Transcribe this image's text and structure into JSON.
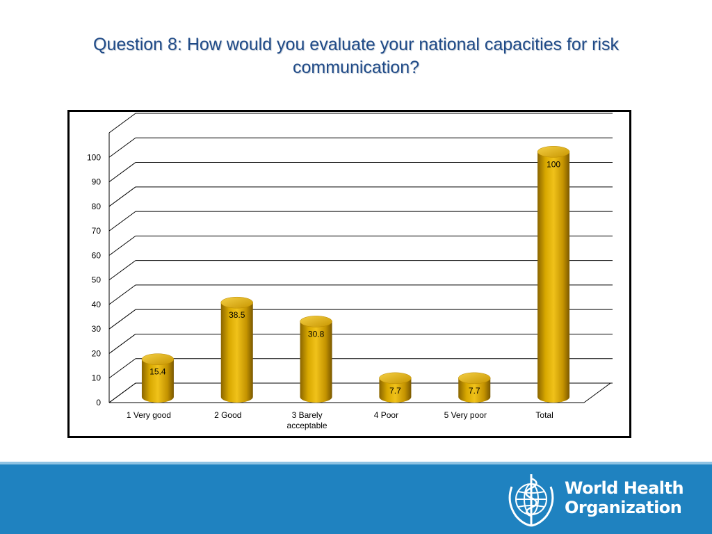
{
  "slide": {
    "title": "Question 8: How would you evaluate your national capacities for risk communication?"
  },
  "footer": {
    "org_name_line1": "World Health",
    "org_name_line2": "Organization",
    "emblem_icon": "who-emblem-icon",
    "band_color": "#1f82c0"
  },
  "chart_data": {
    "type": "bar",
    "title": "",
    "xlabel": "",
    "ylabel": "",
    "categories": [
      [
        "1 Very good"
      ],
      [
        "2 Good"
      ],
      [
        "3 Barely",
        "acceptable"
      ],
      [
        "4 Poor"
      ],
      [
        "5 Very poor"
      ],
      [
        "Total"
      ]
    ],
    "values": [
      15.4,
      38.5,
      30.8,
      7.7,
      7.7,
      100
    ],
    "data_labels": [
      "15.4",
      "38.5",
      "30.8",
      "7.7",
      "7.7",
      "100"
    ],
    "yticks": [
      0,
      10,
      20,
      30,
      40,
      50,
      60,
      70,
      80,
      90,
      100
    ],
    "ylim": [
      0,
      110
    ],
    "grid": true,
    "legend": "none",
    "style": "3d-cylinder",
    "bar_color": "#d4a000"
  }
}
